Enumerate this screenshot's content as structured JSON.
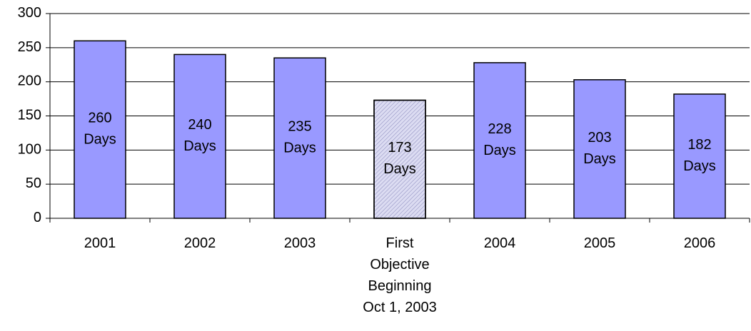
{
  "chart_data": {
    "type": "bar",
    "categories": [
      "2001",
      "2002",
      "2003",
      "First\nObjective\nBeginning\nOct 1, 2003",
      "2004",
      "2005",
      "2006"
    ],
    "values": [
      260,
      240,
      235,
      173,
      228,
      203,
      182
    ],
    "value_labels": [
      "260\nDays",
      "240\nDays",
      "235\nDays",
      "173\nDays",
      "228\nDays",
      "203\nDays",
      "182\nDays"
    ],
    "colors": [
      "#9999ff",
      "#9999ff",
      "#9999ff",
      "#dcdcf2",
      "#9999ff",
      "#9999ff",
      "#9999ff"
    ],
    "ylim": [
      0,
      300
    ],
    "yticks": [
      0,
      50,
      100,
      150,
      200,
      250,
      300
    ],
    "grid": true
  }
}
